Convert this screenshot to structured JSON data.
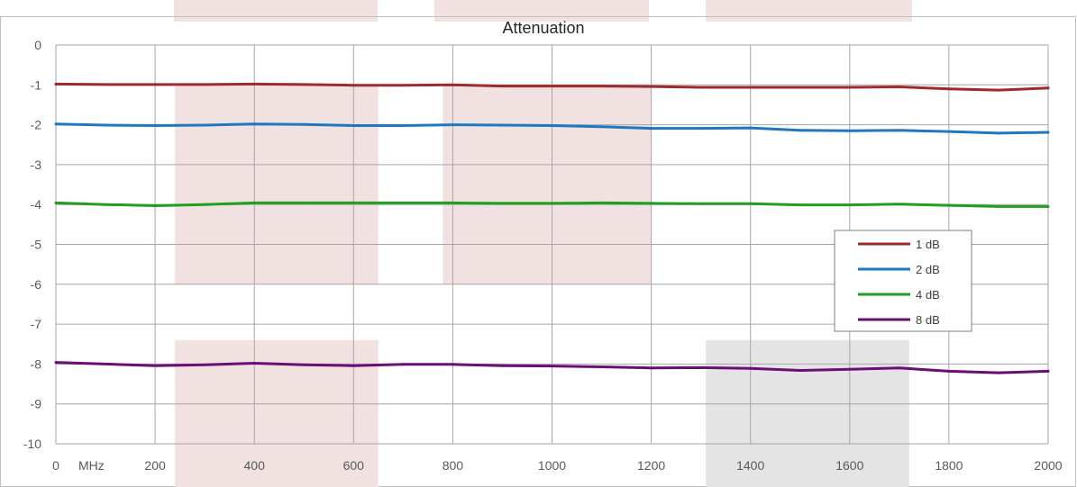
{
  "chart_data": {
    "type": "line",
    "title": "Attenuation",
    "xlabel": "",
    "ylabel": "",
    "x_unit_label": "MHz",
    "xlim": [
      0,
      2000
    ],
    "ylim": [
      -10,
      0
    ],
    "x_ticks": [
      0,
      200,
      400,
      600,
      800,
      1000,
      1200,
      1400,
      1600,
      1800,
      2000
    ],
    "y_ticks": [
      0,
      -1,
      -2,
      -3,
      -4,
      -5,
      -6,
      -7,
      -8,
      -9,
      -10
    ],
    "x_tick_labels": [
      "0",
      "200",
      "400",
      "600",
      "800",
      "1000",
      "1200",
      "1400",
      "1600",
      "1800",
      "2000"
    ],
    "y_tick_labels": [
      "0",
      "-1",
      "-2",
      "-3",
      "-4",
      "-5",
      "-6",
      "-7",
      "-8",
      "-9",
      "-10"
    ],
    "grid": true,
    "legend_position": "right",
    "x": [
      0,
      100,
      200,
      300,
      400,
      500,
      600,
      700,
      800,
      900,
      1000,
      1100,
      1200,
      1300,
      1400,
      1500,
      1600,
      1700,
      1800,
      1900,
      2000
    ],
    "series": [
      {
        "name": "1 dB",
        "color": "#9e2a2b",
        "values": [
          -0.98,
          -0.99,
          -0.99,
          -0.99,
          -0.98,
          -0.99,
          -1.01,
          -1.01,
          -1.0,
          -1.03,
          -1.03,
          -1.03,
          -1.04,
          -1.06,
          -1.06,
          -1.06,
          -1.06,
          -1.05,
          -1.1,
          -1.13,
          -1.08
        ]
      },
      {
        "name": "2 dB",
        "color": "#1f77c2",
        "values": [
          -1.98,
          -2.01,
          -2.02,
          -2.01,
          -1.98,
          -1.99,
          -2.02,
          -2.02,
          -2.0,
          -2.01,
          -2.02,
          -2.05,
          -2.09,
          -2.09,
          -2.08,
          -2.14,
          -2.15,
          -2.14,
          -2.17,
          -2.21,
          -2.19
        ]
      },
      {
        "name": "4 dB",
        "color": "#1f9e1f",
        "values": [
          -3.96,
          -4.0,
          -4.03,
          -4.0,
          -3.96,
          -3.96,
          -3.96,
          -3.96,
          -3.96,
          -3.97,
          -3.97,
          -3.96,
          -3.97,
          -3.98,
          -3.98,
          -4.01,
          -4.01,
          -3.99,
          -4.02,
          -4.05,
          -4.05
        ]
      },
      {
        "name": "8 dB",
        "color": "#6a0d76",
        "values": [
          -7.96,
          -8.0,
          -8.04,
          -8.02,
          -7.98,
          -8.02,
          -8.04,
          -8.01,
          -8.01,
          -8.04,
          -8.05,
          -8.07,
          -8.1,
          -8.09,
          -8.11,
          -8.16,
          -8.13,
          -8.1,
          -8.18,
          -8.22,
          -8.18
        ]
      }
    ],
    "shaded_regions": [
      {
        "x": [
          240,
          650
        ],
        "y": [
          -6,
          -1
        ],
        "color": "#f2e1e1"
      },
      {
        "x": [
          780,
          1200
        ],
        "y": [
          -6,
          -1
        ],
        "color": "#f2e1e1"
      },
      {
        "x": [
          240,
          650
        ],
        "y": [
          -10,
          -7.4
        ],
        "color": "#f2e1e1"
      },
      {
        "x": [
          1310,
          1720
        ],
        "y": [
          -10,
          -7.4
        ],
        "color": "#e4e4e4"
      }
    ]
  }
}
